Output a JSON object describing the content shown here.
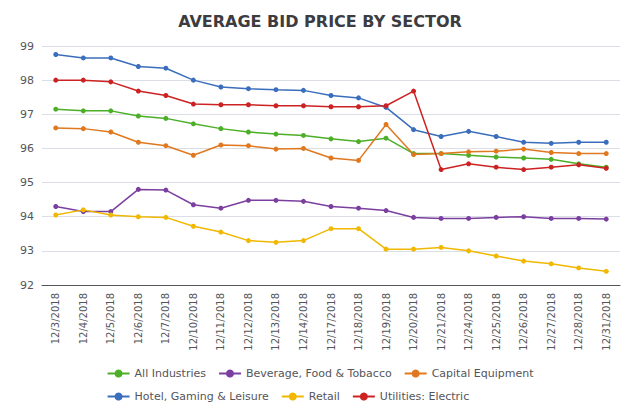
{
  "chart_data": {
    "type": "line",
    "title": "AVERAGE BID PRICE BY SECTOR",
    "categories": [
      "12/3/2018",
      "12/4/2018",
      "12/5/2018",
      "12/6/2018",
      "12/7/2018",
      "12/10/2018",
      "12/11/2018",
      "12/12/2018",
      "12/13/2018",
      "12/14/2018",
      "12/17/2018",
      "12/18/2018",
      "12/19/2018",
      "12/20/2018",
      "12/21/2018",
      "12/24/2018",
      "12/25/2018",
      "12/26/2018",
      "12/27/2018",
      "12/28/2018",
      "12/31/2018"
    ],
    "series": [
      {
        "name": "All Industries",
        "color": "#4caf27",
        "marker": "circle",
        "values": [
          97.15,
          97.1,
          97.1,
          96.95,
          96.88,
          96.72,
          96.58,
          96.48,
          96.42,
          96.38,
          96.28,
          96.2,
          96.3,
          95.85,
          95.85,
          95.8,
          95.75,
          95.72,
          95.68,
          95.55,
          95.45
        ]
      },
      {
        "name": "Beverage, Food & Tobacco",
        "color": "#7b3fa0",
        "marker": "circle",
        "values": [
          94.3,
          94.15,
          94.15,
          94.8,
          94.78,
          94.35,
          94.25,
          94.48,
          94.48,
          94.45,
          94.3,
          94.25,
          94.18,
          93.98,
          93.95,
          93.95,
          93.98,
          94.0,
          93.95,
          93.95,
          93.93
        ]
      },
      {
        "name": "Capital Equipment",
        "color": "#e07820",
        "marker": "circle",
        "values": [
          96.6,
          96.58,
          96.48,
          96.18,
          96.08,
          95.8,
          96.1,
          96.08,
          95.98,
          96.0,
          95.72,
          95.65,
          96.7,
          95.82,
          95.85,
          95.9,
          95.92,
          95.98,
          95.88,
          95.85,
          95.85
        ]
      },
      {
        "name": "Hotel, Gaming & Leisure",
        "color": "#3a6ebc",
        "marker": "circle",
        "values": [
          98.75,
          98.65,
          98.65,
          98.4,
          98.35,
          98.0,
          97.8,
          97.75,
          97.72,
          97.7,
          97.55,
          97.48,
          97.2,
          96.55,
          96.35,
          96.5,
          96.35,
          96.18,
          96.15,
          96.18,
          96.18
        ]
      },
      {
        "name": "Retail",
        "color": "#f0b800",
        "marker": "circle",
        "values": [
          94.05,
          94.2,
          94.05,
          94.0,
          93.98,
          93.72,
          93.55,
          93.3,
          93.25,
          93.3,
          93.65,
          93.65,
          93.05,
          93.05,
          93.1,
          93.0,
          92.85,
          92.7,
          92.62,
          92.5,
          92.4
        ]
      },
      {
        "name": "Utilities: Electric",
        "color": "#cc2222",
        "marker": "circle",
        "values": [
          98.0,
          98.0,
          97.95,
          97.68,
          97.55,
          97.3,
          97.28,
          97.28,
          97.25,
          97.25,
          97.22,
          97.22,
          97.25,
          97.68,
          95.38,
          95.55,
          95.45,
          95.38,
          95.45,
          95.52,
          95.42
        ]
      }
    ],
    "ylim": [
      92,
      99
    ],
    "yticks": [
      92,
      93,
      94,
      95,
      96,
      97,
      98,
      99
    ],
    "grid": true,
    "legend": "bottom"
  }
}
